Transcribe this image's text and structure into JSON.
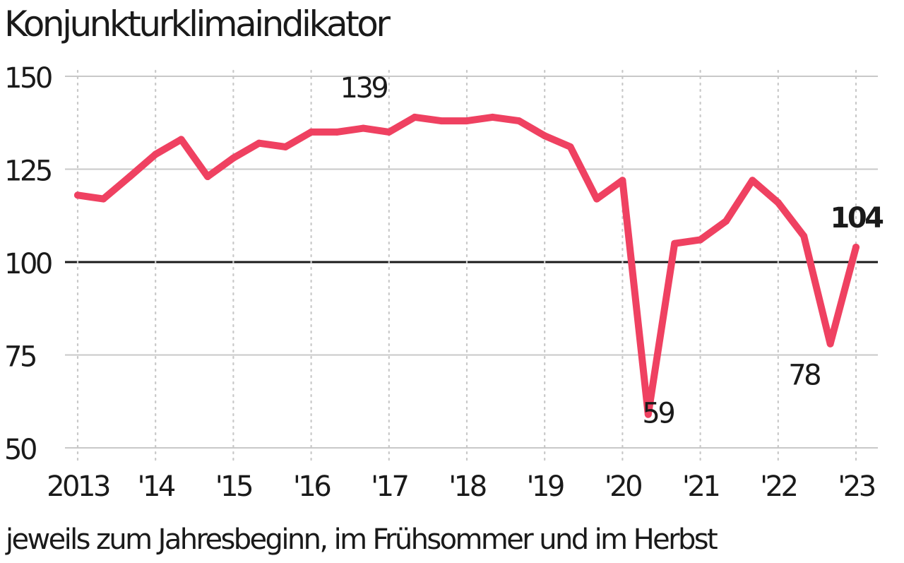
{
  "title": "Konjunkturklimaindikator",
  "note": "jeweils zum Jahresbeginn, im Frühsommer und im Herbst",
  "colors": {
    "line": "#ef4161",
    "grid": "#c8c8c8",
    "reference_line": "#1a1a1a",
    "text": "#1a1a1a"
  },
  "chart_data": {
    "type": "line",
    "title": "Konjunkturklimaindikator",
    "subtitle": "jeweils zum Jahresbeginn, im Frühsommer und im Herbst",
    "xlabel": "",
    "ylabel": "",
    "ylim": [
      50,
      150
    ],
    "xlim": [
      2012.8,
      2023.15
    ],
    "y_ticks": [
      {
        "value": 150,
        "label": "150"
      },
      {
        "value": 125,
        "label": "125"
      },
      {
        "value": 100,
        "label": "100"
      },
      {
        "value": 75,
        "label": "75"
      },
      {
        "value": 50,
        "label": "50"
      }
    ],
    "x_ticks": [
      {
        "value": 2013,
        "label": "2013"
      },
      {
        "value": 2014,
        "label": "'14"
      },
      {
        "value": 2015,
        "label": "'15"
      },
      {
        "value": 2016,
        "label": "'16"
      },
      {
        "value": 2017,
        "label": "'17"
      },
      {
        "value": 2018,
        "label": "'18"
      },
      {
        "value": 2019,
        "label": "'19"
      },
      {
        "value": 2020,
        "label": "'20"
      },
      {
        "value": 2021,
        "label": "'21"
      },
      {
        "value": 2022,
        "label": "'22"
      },
      {
        "value": 2023,
        "label": "'23"
      }
    ],
    "reference_line": 100,
    "grid": {
      "horizontal": true,
      "vertical": "dotted"
    },
    "series": [
      {
        "x": [
          2013.0,
          2013.33,
          2013.67,
          2014.0,
          2014.33,
          2014.67,
          2015.0,
          2015.33,
          2015.67,
          2016.0,
          2016.33,
          2016.67,
          2017.0,
          2017.33,
          2017.67,
          2018.0,
          2018.33,
          2018.67,
          2019.0,
          2019.33,
          2019.67,
          2020.0,
          2020.33,
          2020.67,
          2021.0,
          2021.33,
          2021.67,
          2022.0,
          2022.33,
          2022.67,
          2023.0
        ],
        "values": [
          118,
          117,
          123,
          129,
          133,
          123,
          128,
          132,
          131,
          135,
          135,
          136,
          135,
          139,
          138,
          138,
          139,
          138,
          134,
          131,
          117,
          122,
          59,
          105,
          106,
          111,
          122,
          116,
          107,
          78,
          104
        ]
      }
    ],
    "annotations": [
      {
        "x": 2016.67,
        "y": 139,
        "label": "139",
        "weight": "normal",
        "position": "above"
      },
      {
        "x": 2020.0,
        "y": 59,
        "label": "59",
        "weight": "normal",
        "position": "right"
      },
      {
        "x": 2022.33,
        "y": 78,
        "label": "78",
        "weight": "normal",
        "position": "below"
      },
      {
        "x": 2023.0,
        "y": 104,
        "label": "104",
        "weight": "bold",
        "position": "above"
      }
    ]
  }
}
